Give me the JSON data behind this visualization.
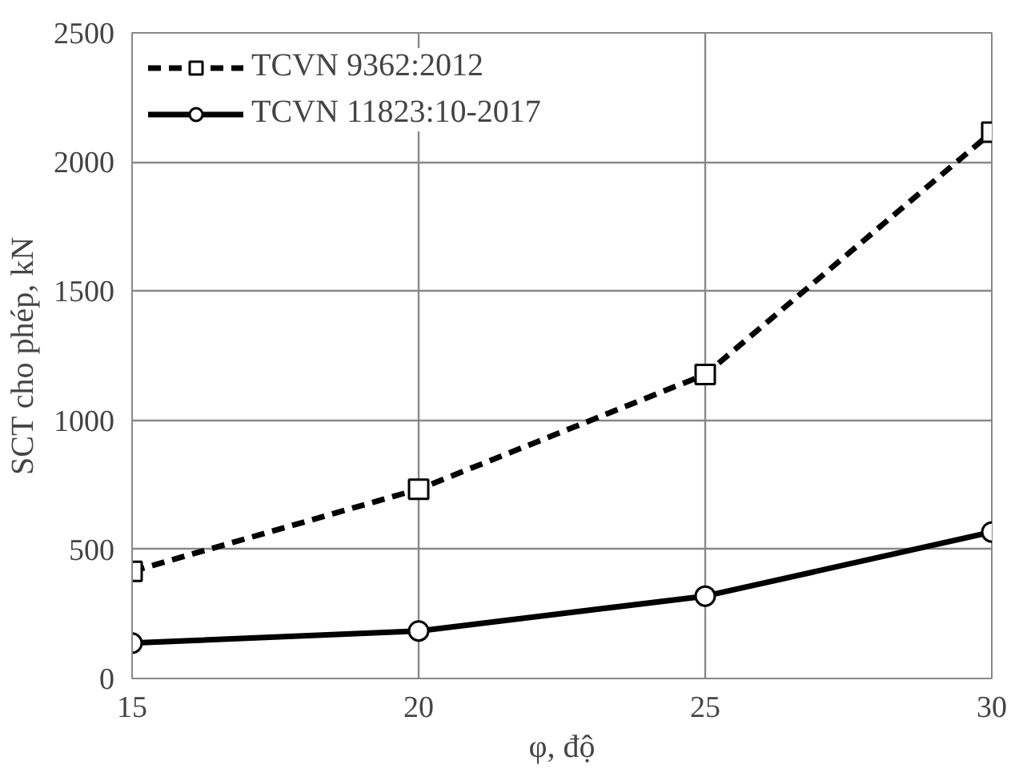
{
  "chart_data": {
    "type": "line",
    "xlabel": "φ, độ",
    "ylabel": "SCT cho phép, kN",
    "x": [
      15,
      20,
      25,
      30
    ],
    "series": [
      {
        "name": "TCVN 9362:2012",
        "color": "#000000",
        "values": [
          415,
          733,
          1177,
          2115
        ],
        "marker": "square",
        "line_style": "dashed"
      },
      {
        "name": "TCVN 11823:10-2017",
        "color": "#000000",
        "values": [
          137,
          184,
          319,
          567
        ],
        "marker": "circle",
        "line_style": "solid"
      }
    ],
    "xlim": [
      15,
      30
    ],
    "xticks": [
      15,
      20,
      25,
      30
    ],
    "ylim": [
      0,
      2500
    ],
    "yticks": [
      0,
      500,
      1000,
      1500,
      2000,
      2500
    ],
    "grid": true,
    "legend": "top left"
  }
}
